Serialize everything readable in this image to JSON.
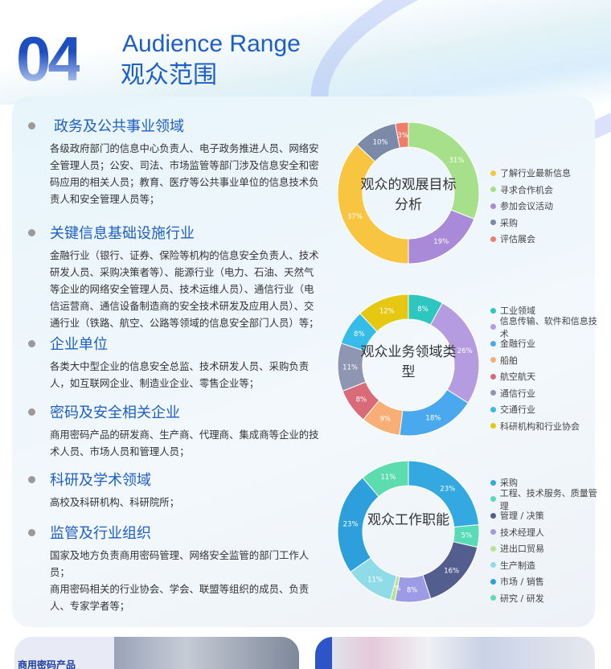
{
  "header": {
    "number": "04",
    "title_en": "Audience Range",
    "title_cn": "观众范围"
  },
  "sections": [
    {
      "title": "政务及公共事业领域",
      "body": "各级政府部门的信息中心负责人、电子政务推进人员、网络安全管理人员；公安、司法、市场监管等部门涉及信息安全和密码应用的相关人员；教育、医疗等公共事业单位的信息技术负责人和安全管理人员等；"
    },
    {
      "title": "关键信息基础设施行业",
      "body": "金融行业（银行、证券、保险等机构的信息安全负责人、技术研发人员、采购决策者等）、能源行业（电力、石油、天然气等企业的网络安全管理人员、技术运维人员）、通信行业（电信运营商、通信设备制造商的安全技术研发及应用人员）、交通行业（铁路、航空、公路等领域的信息安全部门人员）等；"
    },
    {
      "title": "企业单位",
      "body": "各类大中型企业的信息安全总监、技术研发人员、采购负责人，如互联网企业、制造业企业、零售企业等；"
    },
    {
      "title": "密码及安全相关企业",
      "body": "商用密码产品的研发商、生产商、代理商、集成商等企业的技术人员、市场人员和管理人员；"
    },
    {
      "title": "科研及学术领域",
      "body": "高校及科研机构、科研院所；"
    },
    {
      "title": "监管及行业组织",
      "body": "国家及地方负责商用密码管理、网络安全监管的部门工作人员；\n商用密码相关的行业协会、学会、联盟等组织的成员、负责人、专家学者等；"
    }
  ],
  "chart_data": [
    {
      "type": "pie",
      "donut": true,
      "title": "观众的观展目标分析",
      "start_series": 1,
      "series": [
        {
          "name": "了解行业最新信息",
          "value": 37,
          "color": "#f8c540"
        },
        {
          "name": "寻求合作机会",
          "value": 31,
          "color": "#a6e08a"
        },
        {
          "name": "参加会议活动",
          "value": 19,
          "color": "#a98ad8"
        },
        {
          "name": "采购",
          "value": 10,
          "color": "#7b8aa8"
        },
        {
          "name": "评估展会",
          "value": 3,
          "color": "#ef7d6a"
        }
      ],
      "label_order": [
        1,
        2,
        0,
        3,
        4
      ]
    },
    {
      "type": "pie",
      "donut": true,
      "title": "观众业务领域类型",
      "series": [
        {
          "name": "工业领域",
          "value": 8,
          "color": "#2ec7c0"
        },
        {
          "name": "信息传输、软件和信息技术",
          "value": 26,
          "color": "#b59be0"
        },
        {
          "name": "金融行业",
          "value": 18,
          "color": "#4aa8ef"
        },
        {
          "name": "船舶",
          "value": 9,
          "color": "#f8ae74"
        },
        {
          "name": "航空航天",
          "value": 8,
          "color": "#d96a78"
        },
        {
          "name": "通信行业",
          "value": 11,
          "color": "#8f96b2"
        },
        {
          "name": "交通行业",
          "value": 8,
          "color": "#36bce8"
        },
        {
          "name": "科研机构和行业协会",
          "value": 12,
          "color": "#e6c813"
        }
      ]
    },
    {
      "type": "pie",
      "donut": true,
      "title": "观众工作职能",
      "series": [
        {
          "name": "采购",
          "value": 23,
          "color": "#34a8e0"
        },
        {
          "name": "工程、技术服务、质量管理",
          "value": 5,
          "color": "#58dcb8"
        },
        {
          "name": "管理 / 决策",
          "value": 16,
          "color": "#545e8e"
        },
        {
          "name": "技术经理人",
          "value": 8,
          "color": "#9d9ae6"
        },
        {
          "name": "进出口贸易",
          "value": 1,
          "color": "#b6e48e"
        },
        {
          "name": "生产制造",
          "value": 11,
          "color": "#8fdce8"
        },
        {
          "name": "市场 / 销售",
          "value": 23,
          "color": "#2c9fdc"
        },
        {
          "name": "研究 / 研发",
          "value": 11,
          "color": "#5ddcb0"
        }
      ]
    }
  ],
  "photos": {
    "left_caption": "商用密码产品"
  }
}
